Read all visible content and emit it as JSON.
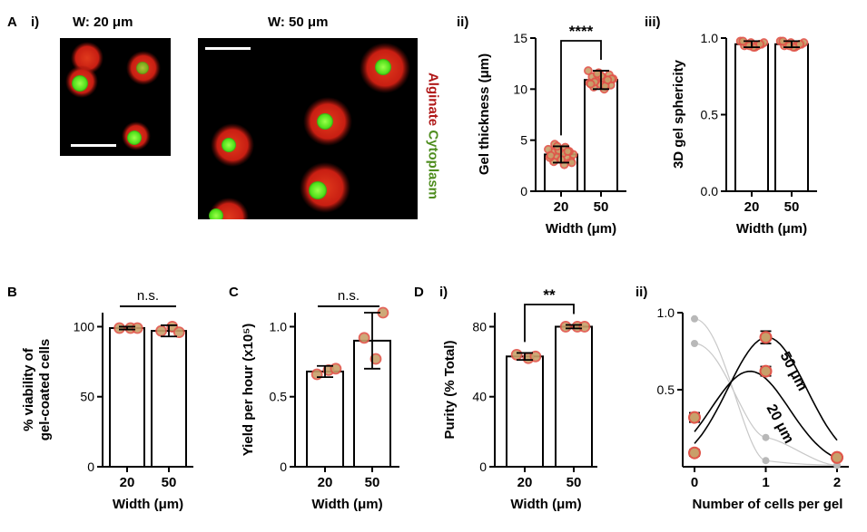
{
  "panels": {
    "A": "A",
    "A_i": "i)",
    "A_ii": "ii)",
    "A_iii": "iii)",
    "B": "B",
    "C": "C",
    "D": "D",
    "D_i": "i)",
    "D_ii": "ii)"
  },
  "images": {
    "left_title": "W: 20 μm",
    "right_title": "W: 50 μm",
    "channel_alginate": "Alginate",
    "channel_cytoplasm": "Cytoplasm",
    "colors": {
      "alginate": "#c81e12",
      "cytoplasm": "#4fe01a",
      "background": "#000000"
    }
  },
  "style": {
    "bar_fill": "#ffffff",
    "bar_stroke": "#000000",
    "point_fill": "#c8a06a",
    "point_stroke": "#e0554a",
    "fit_line": "#000000",
    "faint_line": "#c8c8c8",
    "faint_point": "#b8b8b8"
  },
  "chart_data": [
    {
      "id": "gel-thickness",
      "type": "bar",
      "xlabel": "Width (μm)",
      "ylabel": "Gel thickness (μm)",
      "categories": [
        "20",
        "50"
      ],
      "values": [
        3.6,
        10.9
      ],
      "errors": [
        0.8,
        0.9
      ],
      "ylim": [
        0,
        15
      ],
      "yticks": [
        "0",
        "5",
        "10",
        "15"
      ],
      "significance": "****",
      "points": [
        [
          2.6,
          2.9,
          3.0,
          3.2,
          3.3,
          3.4,
          3.5,
          3.6,
          3.7,
          3.8,
          3.9,
          4.0,
          4.1,
          4.3,
          4.6,
          2.8,
          3.1,
          3.5,
          3.9,
          4.4
        ],
        [
          10.0,
          10.2,
          10.4,
          10.5,
          10.6,
          10.8,
          10.9,
          11.0,
          11.1,
          11.2,
          11.4,
          11.6,
          11.8,
          10.3,
          10.7,
          11.0,
          11.3,
          10.5,
          10.9,
          11.5
        ]
      ]
    },
    {
      "id": "gel-sphericity",
      "type": "bar",
      "xlabel": "Width (μm)",
      "ylabel": "3D gel sphericity",
      "categories": [
        "20",
        "50"
      ],
      "values": [
        0.96,
        0.96
      ],
      "errors": [
        0.02,
        0.02
      ],
      "ylim": [
        0,
        1.0
      ],
      "yticks": [
        "0.0",
        "0.5",
        "1.0"
      ],
      "points": [
        [
          0.94,
          0.95,
          0.96,
          0.97,
          0.98,
          0.95,
          0.96,
          0.97,
          0.94,
          0.98,
          0.96,
          0.95
        ],
        [
          0.94,
          0.95,
          0.96,
          0.97,
          0.98,
          0.95,
          0.96,
          0.97,
          0.94,
          0.98,
          0.96,
          0.95
        ]
      ]
    },
    {
      "id": "viability",
      "type": "bar",
      "xlabel": "Width (μm)",
      "ylabel": [
        "% viability of",
        "gel-coated cells"
      ],
      "categories": [
        "20",
        "50"
      ],
      "values": [
        99,
        97
      ],
      "errors": [
        1,
        4
      ],
      "ylim": [
        0,
        110
      ],
      "yticks": [
        "0",
        "50",
        "100"
      ],
      "significance": "n.s.",
      "points": [
        [
          99,
          99,
          99
        ],
        [
          100,
          97,
          96
        ]
      ]
    },
    {
      "id": "yield",
      "type": "bar",
      "xlabel": "Width (μm)",
      "ylabel": "Yield per hour (x10⁵)",
      "categories": [
        "20",
        "50"
      ],
      "values": [
        0.68,
        0.9
      ],
      "errors": [
        0.04,
        0.2
      ],
      "ylim": [
        0,
        1.1
      ],
      "yticks": [
        "0",
        "0.5",
        "1.0"
      ],
      "significance": "n.s.",
      "points": [
        [
          0.69,
          0.66,
          0.7
        ],
        [
          0.77,
          0.92,
          1.1
        ]
      ]
    },
    {
      "id": "purity",
      "type": "bar",
      "xlabel": "Width (μm)",
      "ylabel": "Purity (% Total)",
      "categories": [
        "20",
        "50"
      ],
      "values": [
        63,
        80
      ],
      "errors": [
        2,
        1
      ],
      "ylim": [
        0,
        88
      ],
      "yticks": [
        "0",
        "40",
        "80"
      ],
      "significance": "**",
      "points": [
        [
          62,
          64,
          63
        ],
        [
          80,
          80,
          80
        ]
      ]
    },
    {
      "id": "cells-per-gel",
      "type": "line",
      "xlabel": "Number of cells per gel",
      "ylabel": "",
      "xticks": [
        "0",
        "1",
        "2"
      ],
      "yticks": [
        "0.5",
        "1.0"
      ],
      "xlim": [
        0,
        2
      ],
      "ylim": [
        0,
        1.0
      ],
      "series": [
        {
          "name": "50 μm",
          "x": [
            0,
            1,
            2
          ],
          "y": [
            0.09,
            0.84,
            0.06
          ],
          "errors": [
            0.02,
            0.04,
            0.01
          ]
        },
        {
          "name": "20 μm",
          "x": [
            0,
            1,
            2
          ],
          "y": [
            0.32,
            0.62,
            0.06
          ],
          "errors": [
            0.03,
            0.03,
            0.01
          ]
        }
      ],
      "poisson": [
        {
          "x": [
            0,
            1,
            2
          ],
          "y": [
            0.96,
            0.04,
            0.01
          ]
        },
        {
          "x": [
            0,
            1,
            2
          ],
          "y": [
            0.8,
            0.19,
            0.01
          ]
        }
      ]
    }
  ]
}
